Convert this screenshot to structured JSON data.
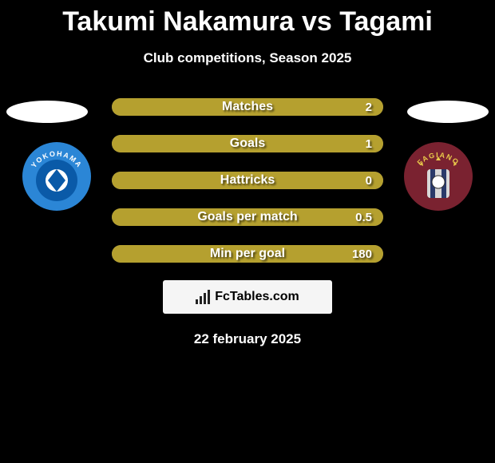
{
  "header": {
    "title": "Takumi Nakamura vs Tagami",
    "subtitle": "Club competitions, Season 2025"
  },
  "colors": {
    "pill_left_fill": "#b5a02f",
    "pill_background": "#6b6b6b",
    "badge_left_bg": "#2b86d6",
    "badge_left_inner": "#0a5aa8",
    "badge_left_text": "YOKOHAMA",
    "badge_right_bg": "#7a2230",
    "badge_right_inner": "#3a3a3a",
    "badge_right_text": "FAGIANO"
  },
  "stats": [
    {
      "label": "Matches",
      "value": "2",
      "left_pct": 100
    },
    {
      "label": "Goals",
      "value": "1",
      "left_pct": 100
    },
    {
      "label": "Hattricks",
      "value": "0",
      "left_pct": 100
    },
    {
      "label": "Goals per match",
      "value": "0.5",
      "left_pct": 100
    },
    {
      "label": "Min per goal",
      "value": "180",
      "left_pct": 100
    }
  ],
  "footer": {
    "brand": "FcTables.com",
    "date": "22 february 2025"
  }
}
